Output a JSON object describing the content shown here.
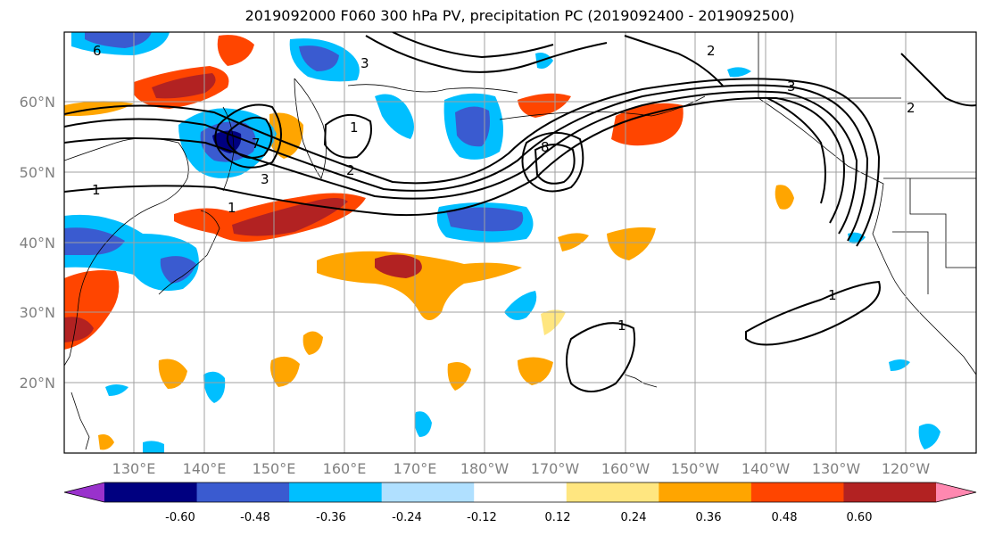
{
  "title": "2019092000 F060 300 hPa PV, precipitation PC (2019092400 - 2019092500)",
  "lat_labels": [
    "60°N",
    "50°N",
    "40°N",
    "30°N",
    "20°N"
  ],
  "lon_labels": [
    "130°E",
    "140°E",
    "150°E",
    "160°E",
    "170°E",
    "180°W",
    "170°W",
    "160°W",
    "150°W",
    "140°W",
    "130°W",
    "120°W"
  ],
  "contour_labels": [
    "1",
    "1",
    "1",
    "1",
    "1",
    "2",
    "2",
    "2",
    "3",
    "3",
    "3",
    "6",
    "7",
    "8"
  ],
  "colorbar": {
    "colors": [
      "#9932cc",
      "#000080",
      "#3a5bd0",
      "#00bfff",
      "#b0e0ff",
      "#ffffff",
      "#ffe680",
      "#ffa500",
      "#ff4500",
      "#b22222",
      "#ff88b0"
    ],
    "tick_labels": [
      "-0.60",
      "-0.48",
      "-0.36",
      "-0.24",
      "-0.12",
      "0.12",
      "0.24",
      "0.36",
      "0.48",
      "0.60"
    ]
  }
}
